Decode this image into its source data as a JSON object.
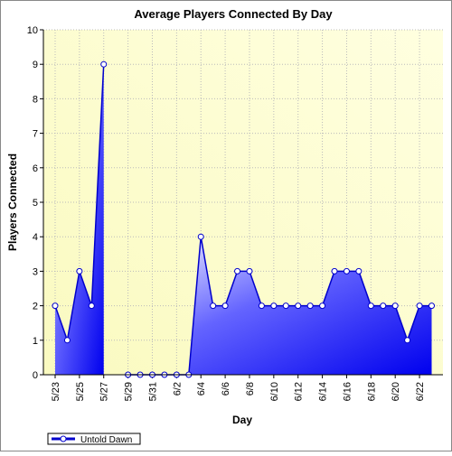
{
  "chart_data": {
    "type": "area-line",
    "title": "Average Players Connected By Day",
    "x_label": "Day",
    "y_label": "Players Connected",
    "categories": [
      "5/23",
      null,
      "5/25",
      null,
      "5/27",
      null,
      "5/29",
      null,
      "5/31",
      null,
      "6/2",
      null,
      "6/4",
      null,
      "6/6",
      null,
      "6/8",
      null,
      "6/10",
      null,
      "6/12",
      null,
      "6/14",
      null,
      "6/16",
      null,
      "6/18",
      null,
      "6/20",
      null,
      "6/22",
      null
    ],
    "series": [
      {
        "name": "Untold Dawn",
        "color": "#0000cc",
        "values": [
          2,
          1,
          3,
          2,
          9,
          null,
          0,
          0,
          0,
          0,
          0,
          0,
          4,
          2,
          2,
          3,
          3,
          2,
          2,
          2,
          2,
          2,
          2,
          3,
          3,
          3,
          2,
          2,
          2,
          1,
          2,
          2
        ]
      }
    ],
    "ylim": [
      0,
      10
    ],
    "yticks": [
      0,
      1,
      2,
      3,
      4,
      5,
      6,
      7,
      8,
      9,
      10
    ],
    "grid": true,
    "legend": "bottom-left"
  }
}
